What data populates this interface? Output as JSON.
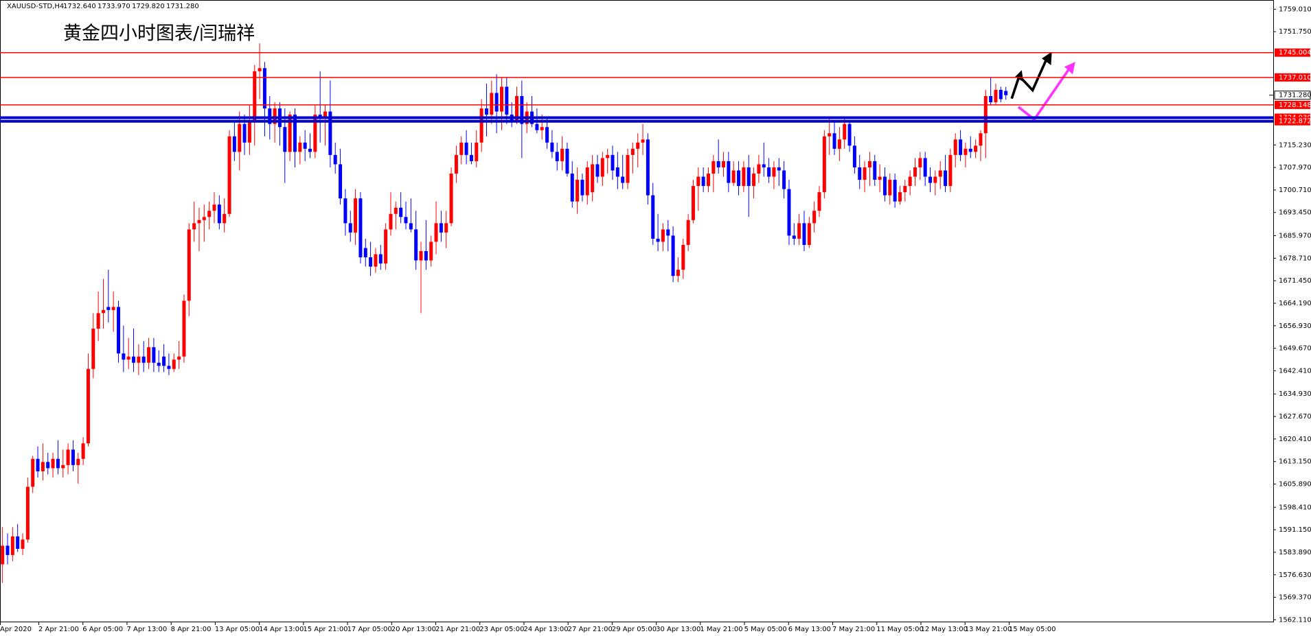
{
  "header": {
    "symbol": "XAUUSD-STD,H4",
    "quote": [
      "1732.640",
      "1733.970",
      "1729.820",
      "1731.280"
    ]
  },
  "chart_data": {
    "type": "candlestick",
    "annotation": "黄金四小时图表/闫瑞祥",
    "up_color": "#ff0000",
    "down_color": "#0000ff",
    "categories": [
      "Apr 2020",
      "2 Apr 21:00",
      "6 Apr 05:00",
      "7 Apr 13:00",
      "8 Apr 21:00",
      "13 Apr 05:00",
      "14 Apr 13:00",
      "15 Apr 21:00",
      "17 Apr 05:00",
      "20 Apr 13:00",
      "21 Apr 21:00",
      "23 Apr 05:00",
      "24 Apr 13:00",
      "27 Apr 21:00",
      "29 Apr 05:00",
      "30 Apr 13:00",
      "1 May 21:00",
      "5 May 05:00",
      "6 May 13:00",
      "7 May 21:00",
      "11 May 05:00",
      "12 May 13:00",
      "13 May 21:00",
      "15 May 05:00"
    ],
    "ylim": [
      1561.31,
      1761.53
    ],
    "yticks": [
      {
        "value": 1759.01,
        "label": "1759.010"
      },
      {
        "value": 1751.75,
        "label": "1751.750"
      },
      {
        "value": 1715.23,
        "label": "1715.230"
      },
      {
        "value": 1707.97,
        "label": "1707.970"
      },
      {
        "value": 1700.71,
        "label": "1700.710"
      },
      {
        "value": 1693.45,
        "label": "1693.450"
      },
      {
        "value": 1685.97,
        "label": "1685.970"
      },
      {
        "value": 1678.71,
        "label": "1678.710"
      },
      {
        "value": 1671.45,
        "label": "1671.450"
      },
      {
        "value": 1664.19,
        "label": "1664.190"
      },
      {
        "value": 1656.93,
        "label": "1656.930"
      },
      {
        "value": 1649.67,
        "label": "1649.670"
      },
      {
        "value": 1642.41,
        "label": "1642.410"
      },
      {
        "value": 1634.93,
        "label": "1634.930"
      },
      {
        "value": 1627.67,
        "label": "1627.670"
      },
      {
        "value": 1620.41,
        "label": "1620.410"
      },
      {
        "value": 1613.15,
        "label": "1613.150"
      },
      {
        "value": 1605.89,
        "label": "1605.890"
      },
      {
        "value": 1598.41,
        "label": "1598.410"
      },
      {
        "value": 1591.15,
        "label": "1591.150"
      },
      {
        "value": 1583.89,
        "label": "1583.890"
      },
      {
        "value": 1576.63,
        "label": "1576.630"
      },
      {
        "value": 1569.37,
        "label": "1569.370"
      },
      {
        "value": 1562.11,
        "label": "1562.110"
      }
    ],
    "levels": [
      {
        "value": 1745.004,
        "color": "#ff0000"
      },
      {
        "value": 1737.01,
        "label": "1737.010",
        "color": "#ff0000"
      },
      {
        "value": 1728.148,
        "color": "#ff0000"
      },
      {
        "value": 1724.03,
        "label": "1724.030",
        "color": "#0000cc"
      },
      {
        "value": 1722.872,
        "color": "#0000cc"
      }
    ],
    "current_price": {
      "value": 1731.28,
      "label": "1731.280"
    },
    "ohlc": [
      [
        1580,
        1592,
        1574,
        1586
      ],
      [
        1586,
        1590,
        1580,
        1583
      ],
      [
        1583,
        1592,
        1581,
        1589
      ],
      [
        1589,
        1593,
        1584,
        1585
      ],
      [
        1585,
        1590,
        1583,
        1588
      ],
      [
        1588,
        1608,
        1587,
        1605
      ],
      [
        1605,
        1615,
        1603,
        1614
      ],
      [
        1614,
        1618,
        1608,
        1610
      ],
      [
        1610,
        1619,
        1607,
        1613
      ],
      [
        1613,
        1616,
        1609,
        1611
      ],
      [
        1611,
        1616,
        1608,
        1614
      ],
      [
        1614,
        1620,
        1609,
        1611
      ],
      [
        1611,
        1617,
        1608,
        1612
      ],
      [
        1612,
        1619,
        1609,
        1617
      ],
      [
        1617,
        1620,
        1610,
        1612
      ],
      [
        1612,
        1616,
        1606,
        1614
      ],
      [
        1614,
        1621,
        1612,
        1619
      ],
      [
        1619,
        1648,
        1618,
        1643
      ],
      [
        1643,
        1661,
        1640,
        1656
      ],
      [
        1656,
        1668,
        1652,
        1661
      ],
      [
        1661,
        1672,
        1656,
        1662
      ],
      [
        1663,
        1675,
        1658,
        1662
      ],
      [
        1662,
        1668,
        1655,
        1663
      ],
      [
        1663,
        1665,
        1645,
        1648
      ],
      [
        1648,
        1657,
        1642,
        1646
      ],
      [
        1646,
        1653,
        1643,
        1647
      ],
      [
        1647,
        1656,
        1642,
        1645
      ],
      [
        1645,
        1651,
        1641,
        1647
      ],
      [
        1647,
        1652,
        1642,
        1645
      ],
      [
        1645,
        1653,
        1643,
        1650
      ],
      [
        1650,
        1653,
        1642,
        1645
      ],
      [
        1645,
        1649,
        1642,
        1644
      ],
      [
        1647,
        1651,
        1642,
        1644
      ],
      [
        1644,
        1648,
        1641,
        1643
      ],
      [
        1643,
        1648,
        1642,
        1646
      ],
      [
        1646,
        1652,
        1643,
        1647
      ],
      [
        1647,
        1667,
        1645,
        1665
      ],
      [
        1665,
        1690,
        1660,
        1688
      ],
      [
        1688,
        1697,
        1684,
        1690
      ],
      [
        1690,
        1695,
        1681,
        1691
      ],
      [
        1691,
        1696,
        1684,
        1692
      ],
      [
        1692,
        1697,
        1688,
        1694
      ],
      [
        1694,
        1700,
        1690,
        1696
      ],
      [
        1696,
        1699,
        1688,
        1690
      ],
      [
        1690,
        1698,
        1687,
        1693
      ],
      [
        1693,
        1720,
        1692,
        1718
      ],
      [
        1718,
        1723,
        1710,
        1713
      ],
      [
        1713,
        1726,
        1707,
        1722
      ],
      [
        1722,
        1725,
        1712,
        1716
      ],
      [
        1716,
        1728,
        1712,
        1723
      ],
      [
        1723,
        1741,
        1715,
        1739
      ],
      [
        1739,
        1748,
        1730,
        1740
      ],
      [
        1740,
        1742,
        1718,
        1727
      ],
      [
        1727,
        1731,
        1717,
        1722
      ],
      [
        1722,
        1729,
        1716,
        1727
      ],
      [
        1727,
        1729,
        1715,
        1721
      ],
      [
        1721,
        1727,
        1703,
        1713
      ],
      [
        1713,
        1726,
        1710,
        1725
      ],
      [
        1725,
        1727,
        1708,
        1713
      ],
      [
        1713,
        1718,
        1709,
        1716
      ],
      [
        1716,
        1720,
        1710,
        1714
      ],
      [
        1714,
        1719,
        1711,
        1713
      ],
      [
        1713,
        1728,
        1711,
        1725
      ],
      [
        1725,
        1739,
        1716,
        1724
      ],
      [
        1724,
        1728,
        1715,
        1726
      ],
      [
        1726,
        1736,
        1708,
        1712
      ],
      [
        1712,
        1716,
        1706,
        1709
      ],
      [
        1709,
        1714,
        1696,
        1698
      ],
      [
        1698,
        1701,
        1686,
        1690
      ],
      [
        1690,
        1694,
        1684,
        1687
      ],
      [
        1687,
        1701,
        1683,
        1698
      ],
      [
        1698,
        1700,
        1677,
        1679
      ],
      [
        1682,
        1685,
        1676,
        1679
      ],
      [
        1679,
        1684,
        1673,
        1676
      ],
      [
        1676,
        1682,
        1674,
        1680
      ],
      [
        1680,
        1683,
        1675,
        1677
      ],
      [
        1677,
        1690,
        1675,
        1688
      ],
      [
        1688,
        1700,
        1686,
        1693
      ],
      [
        1693,
        1697,
        1688,
        1695
      ],
      [
        1695,
        1700,
        1690,
        1692
      ],
      [
        1692,
        1697,
        1688,
        1690
      ],
      [
        1690,
        1698,
        1687,
        1688
      ],
      [
        1688,
        1694,
        1675,
        1678
      ],
      [
        1678,
        1684,
        1661,
        1681
      ],
      [
        1681,
        1691,
        1675,
        1678
      ],
      [
        1678,
        1686,
        1676,
        1684
      ],
      [
        1684,
        1697,
        1680,
        1690
      ],
      [
        1690,
        1694,
        1684,
        1687
      ],
      [
        1687,
        1694,
        1682,
        1690
      ],
      [
        1690,
        1708,
        1689,
        1706
      ],
      [
        1706,
        1715,
        1703,
        1712
      ],
      [
        1712,
        1718,
        1709,
        1716
      ],
      [
        1716,
        1720,
        1709,
        1712
      ],
      [
        1712,
        1716,
        1709,
        1710
      ],
      [
        1710,
        1720,
        1708,
        1716
      ],
      [
        1716,
        1730,
        1713,
        1727
      ],
      [
        1727,
        1735,
        1718,
        1725
      ],
      [
        1725,
        1736,
        1722,
        1732
      ],
      [
        1732,
        1738,
        1719,
        1726
      ],
      [
        1726,
        1737,
        1720,
        1734
      ],
      [
        1734,
        1737,
        1722,
        1725
      ],
      [
        1725,
        1729,
        1721,
        1723
      ],
      [
        1723,
        1734,
        1722,
        1731
      ],
      [
        1731,
        1736,
        1711,
        1722
      ],
      [
        1722,
        1729,
        1719,
        1726
      ],
      [
        1726,
        1731,
        1721,
        1722
      ],
      [
        1722,
        1727,
        1719,
        1720
      ],
      [
        1720,
        1725,
        1717,
        1721
      ],
      [
        1721,
        1724,
        1714,
        1716
      ],
      [
        1716,
        1720,
        1711,
        1713
      ],
      [
        1713,
        1716,
        1707,
        1710
      ],
      [
        1710,
        1718,
        1707,
        1714
      ],
      [
        1714,
        1716,
        1705,
        1706
      ],
      [
        1706,
        1710,
        1695,
        1697
      ],
      [
        1697,
        1708,
        1693,
        1704
      ],
      [
        1704,
        1706,
        1697,
        1699
      ],
      [
        1699,
        1710,
        1696,
        1708
      ],
      [
        1700,
        1712,
        1697,
        1709
      ],
      [
        1709,
        1712,
        1703,
        1705
      ],
      [
        1705,
        1713,
        1702,
        1711
      ],
      [
        1711,
        1714,
        1706,
        1712
      ],
      [
        1712,
        1715,
        1704,
        1707
      ],
      [
        1708,
        1713,
        1701,
        1705
      ],
      [
        1705,
        1712,
        1701,
        1703
      ],
      [
        1703,
        1714,
        1701,
        1712
      ],
      [
        1712,
        1716,
        1706,
        1714
      ],
      [
        1714,
        1719,
        1708,
        1716
      ],
      [
        1716,
        1722,
        1712,
        1717
      ],
      [
        1717,
        1719,
        1696,
        1699
      ],
      [
        1699,
        1703,
        1683,
        1685
      ],
      [
        1685,
        1693,
        1681,
        1684
      ],
      [
        1684,
        1690,
        1681,
        1688
      ],
      [
        1688,
        1691,
        1681,
        1686
      ],
      [
        1686,
        1689,
        1671,
        1673
      ],
      [
        1673,
        1679,
        1671,
        1675
      ],
      [
        1675,
        1685,
        1672,
        1683
      ],
      [
        1683,
        1693,
        1681,
        1691
      ],
      [
        1691,
        1704,
        1690,
        1702
      ],
      [
        1702,
        1708,
        1694,
        1705
      ],
      [
        1705,
        1708,
        1700,
        1702
      ],
      [
        1702,
        1708,
        1700,
        1706
      ],
      [
        1706,
        1712,
        1700,
        1710
      ],
      [
        1710,
        1717,
        1706,
        1708
      ],
      [
        1708,
        1713,
        1705,
        1710
      ],
      [
        1710,
        1713,
        1700,
        1703
      ],
      [
        1703,
        1710,
        1702,
        1707
      ],
      [
        1707,
        1710,
        1699,
        1702
      ],
      [
        1702,
        1710,
        1700,
        1708
      ],
      [
        1708,
        1712,
        1692,
        1702
      ],
      [
        1702,
        1708,
        1698,
        1706
      ],
      [
        1706,
        1712,
        1703,
        1709
      ],
      [
        1709,
        1716,
        1705,
        1708
      ],
      [
        1708,
        1711,
        1703,
        1705
      ],
      [
        1705,
        1710,
        1701,
        1708
      ],
      [
        1708,
        1711,
        1702,
        1707
      ],
      [
        1707,
        1710,
        1698,
        1701
      ],
      [
        1701,
        1704,
        1683,
        1686
      ],
      [
        1686,
        1690,
        1683,
        1685
      ],
      [
        1685,
        1693,
        1683,
        1690
      ],
      [
        1690,
        1694,
        1681,
        1683
      ],
      [
        1683,
        1692,
        1682,
        1690
      ],
      [
        1690,
        1697,
        1687,
        1694
      ],
      [
        1694,
        1702,
        1692,
        1700
      ],
      [
        1700,
        1720,
        1698,
        1718
      ],
      [
        1718,
        1724,
        1712,
        1719
      ],
      [
        1719,
        1723,
        1712,
        1714
      ],
      [
        1714,
        1721,
        1710,
        1717
      ],
      [
        1717,
        1724,
        1714,
        1722
      ],
      [
        1722,
        1723,
        1713,
        1715
      ],
      [
        1715,
        1718,
        1706,
        1708
      ],
      [
        1708,
        1712,
        1701,
        1704
      ],
      [
        1704,
        1710,
        1700,
        1708
      ],
      [
        1708,
        1713,
        1702,
        1710
      ],
      [
        1710,
        1712,
        1702,
        1704
      ],
      [
        1704,
        1709,
        1700,
        1705
      ],
      [
        1705,
        1708,
        1697,
        1699
      ],
      [
        1699,
        1706,
        1696,
        1704
      ],
      [
        1704,
        1706,
        1695,
        1697
      ],
      [
        1697,
        1702,
        1696,
        1700
      ],
      [
        1700,
        1704,
        1697,
        1702
      ],
      [
        1702,
        1707,
        1699,
        1705
      ],
      [
        1705,
        1711,
        1702,
        1708
      ],
      [
        1708,
        1713,
        1704,
        1711
      ],
      [
        1711,
        1713,
        1702,
        1705
      ],
      [
        1705,
        1708,
        1700,
        1703
      ],
      [
        1703,
        1707,
        1699,
        1705
      ],
      [
        1705,
        1710,
        1701,
        1707
      ],
      [
        1707,
        1712,
        1700,
        1702
      ],
      [
        1702,
        1714,
        1700,
        1712
      ],
      [
        1712,
        1719,
        1708,
        1717
      ],
      [
        1717,
        1720,
        1710,
        1712
      ],
      [
        1712,
        1716,
        1708,
        1714
      ],
      [
        1714,
        1718,
        1711,
        1713
      ],
      [
        1713,
        1717,
        1711,
        1715
      ],
      [
        1715,
        1720,
        1710,
        1719
      ],
      [
        1719,
        1733,
        1711,
        1731
      ],
      [
        1731,
        1737,
        1728,
        1729
      ],
      [
        1729,
        1735,
        1728,
        1733
      ],
      [
        1733,
        1734,
        1729,
        1730
      ],
      [
        1732.64,
        1733.97,
        1729.82,
        1731.28
      ]
    ]
  }
}
